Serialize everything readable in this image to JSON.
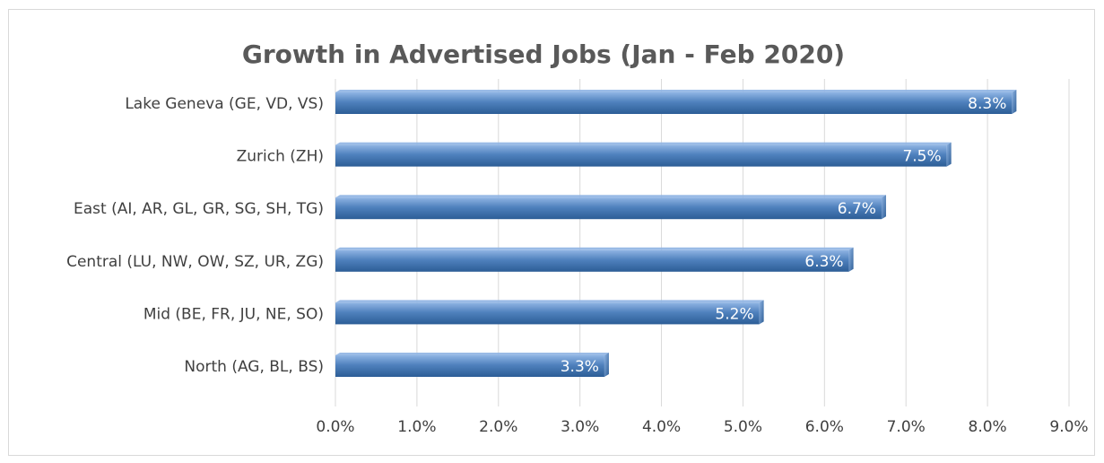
{
  "chart_data": {
    "type": "bar",
    "orientation": "horizontal",
    "title": "Growth in Advertised Jobs (Jan - Feb 2020)",
    "xlabel": "",
    "ylabel": "",
    "categories": [
      "Lake Geneva (GE, VD, VS)",
      "Zurich (ZH)",
      "East (AI, AR, GL, GR, SG, SH, TG)",
      "Central (LU, NW, OW, SZ, UR, ZG)",
      "Mid (BE, FR, JU, NE, SO)",
      "North (AG, BL, BS)"
    ],
    "values": [
      8.3,
      7.5,
      6.7,
      6.3,
      5.2,
      3.3
    ],
    "data_labels": [
      "8.3%",
      "7.5%",
      "6.7%",
      "6.3%",
      "5.2%",
      "3.3%"
    ],
    "xlim": [
      0,
      9
    ],
    "x_ticks": [
      0,
      1,
      2,
      3,
      4,
      5,
      6,
      7,
      8,
      9
    ],
    "x_tick_labels": [
      "0.0%",
      "1.0%",
      "2.0%",
      "3.0%",
      "4.0%",
      "5.0%",
      "6.0%",
      "7.0%",
      "8.0%",
      "9.0%"
    ],
    "grid": "vertical",
    "legend": "none",
    "colors": {
      "bar": "#4f81bd",
      "bar_light": "#8fb4e3",
      "bar_dark": "#2c5d96",
      "grid": "#d9d9d9",
      "title": "#595959",
      "text": "#404040"
    }
  }
}
